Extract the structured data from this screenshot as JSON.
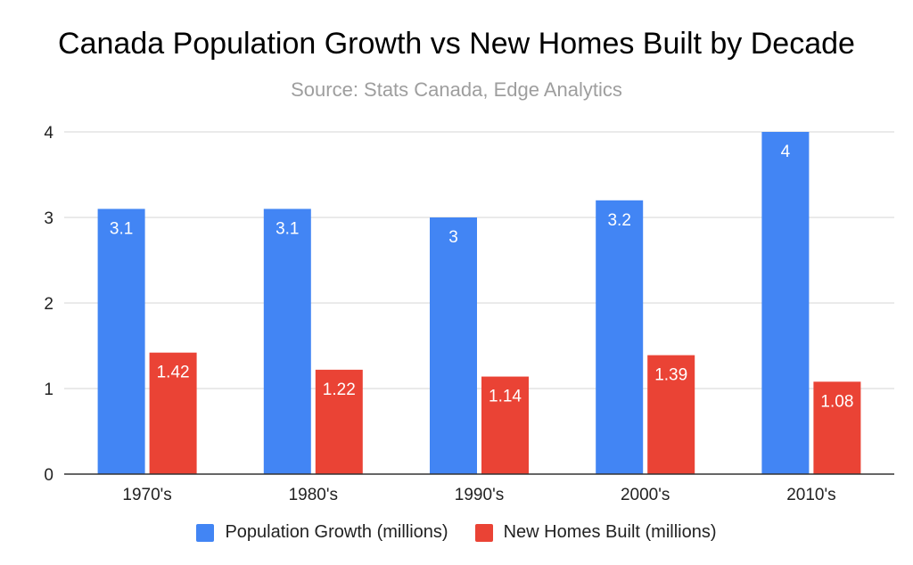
{
  "chart_data": {
    "type": "bar",
    "title": "Canada Population Growth vs New Homes Built by Decade",
    "subtitle": "Source: Stats Canada, Edge Analytics",
    "xlabel": "",
    "ylabel": "",
    "categories": [
      "1970's",
      "1980's",
      "1990's",
      "2000's",
      "2010's"
    ],
    "ylim": [
      0,
      4
    ],
    "yticks": [
      0,
      1,
      2,
      3,
      4
    ],
    "grid": true,
    "legend_position": "bottom",
    "series": [
      {
        "name": "Population Growth (millions)",
        "color": "#4285f4",
        "values": [
          3.1,
          3.1,
          3,
          3.2,
          4
        ],
        "labels": [
          "3.1",
          "3.1",
          "3",
          "3.2",
          "4"
        ]
      },
      {
        "name": "New Homes Built (millions)",
        "color": "#ea4335",
        "values": [
          1.42,
          1.22,
          1.14,
          1.39,
          1.08
        ],
        "labels": [
          "1.42",
          "1.22",
          "1.14",
          "1.39",
          "1.08"
        ]
      }
    ]
  }
}
